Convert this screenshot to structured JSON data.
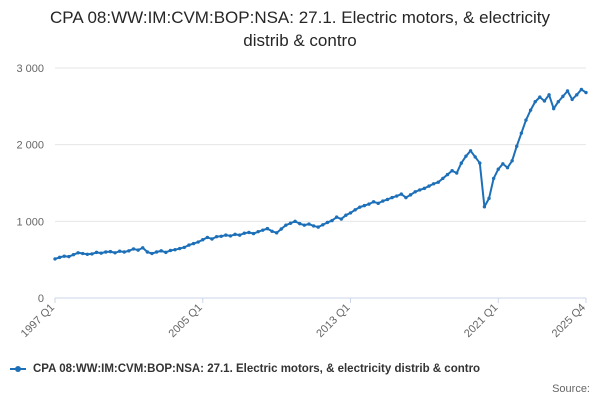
{
  "page": {
    "title": "CPA 08:WW:IM:CVM:BOP:NSA: 27.1. Electric motors, & electricity distrib & contro",
    "source_label": "Source:"
  },
  "legend": {
    "label": "CPA 08:WW:IM:CVM:BOP:NSA: 27.1. Electric motors, & electricity distrib & contro"
  },
  "colors": {
    "line": "#1d70b8",
    "grid": "#e6e6e6",
    "axis_line": "#ccd6eb",
    "axis_text": "#666666",
    "title_text": "#262626"
  },
  "chart_data": {
    "type": "line",
    "title": "CPA 08:WW:IM:CVM:BOP:NSA: 27.1. Electric motors, & electricity distrib & contro",
    "x_unit": "quarter",
    "x_range": [
      "1997 Q1",
      "2025 Q4"
    ],
    "x_tick_labels": [
      "1997 Q1",
      "2005 Q1",
      "2013 Q1",
      "2021 Q1",
      "2025 Q4"
    ],
    "x_tick_indices": [
      0,
      32,
      64,
      96,
      115
    ],
    "y_ticks": [
      0,
      1000,
      2000,
      3000
    ],
    "y_tick_labels": [
      "0",
      "1 000",
      "2 000",
      "3 000"
    ],
    "ylim": [
      0,
      3000
    ],
    "grid": true,
    "legend_position": "bottom-left",
    "series": [
      {
        "name": "CPA 08:WW:IM:CVM:BOP:NSA: 27.1. Electric motors, & electricity distrib & contro",
        "start": "1997 Q1",
        "values": [
          510,
          530,
          545,
          540,
          565,
          590,
          580,
          570,
          575,
          595,
          585,
          600,
          605,
          590,
          610,
          600,
          615,
          640,
          625,
          655,
          600,
          580,
          600,
          615,
          595,
          620,
          630,
          645,
          660,
          690,
          710,
          730,
          760,
          790,
          770,
          800,
          805,
          820,
          810,
          830,
          820,
          845,
          855,
          840,
          865,
          885,
          905,
          870,
          850,
          900,
          950,
          975,
          1000,
          970,
          950,
          965,
          940,
          925,
          955,
          985,
          1010,
          1055,
          1030,
          1080,
          1110,
          1150,
          1185,
          1205,
          1225,
          1255,
          1235,
          1265,
          1285,
          1310,
          1330,
          1355,
          1310,
          1345,
          1385,
          1410,
          1430,
          1460,
          1490,
          1510,
          1560,
          1610,
          1660,
          1630,
          1760,
          1850,
          1920,
          1840,
          1760,
          1190,
          1300,
          1560,
          1680,
          1750,
          1700,
          1790,
          1980,
          2150,
          2320,
          2450,
          2560,
          2620,
          2570,
          2650,
          2470,
          2560,
          2630,
          2700,
          2590,
          2650,
          2720,
          2680
        ]
      }
    ]
  }
}
